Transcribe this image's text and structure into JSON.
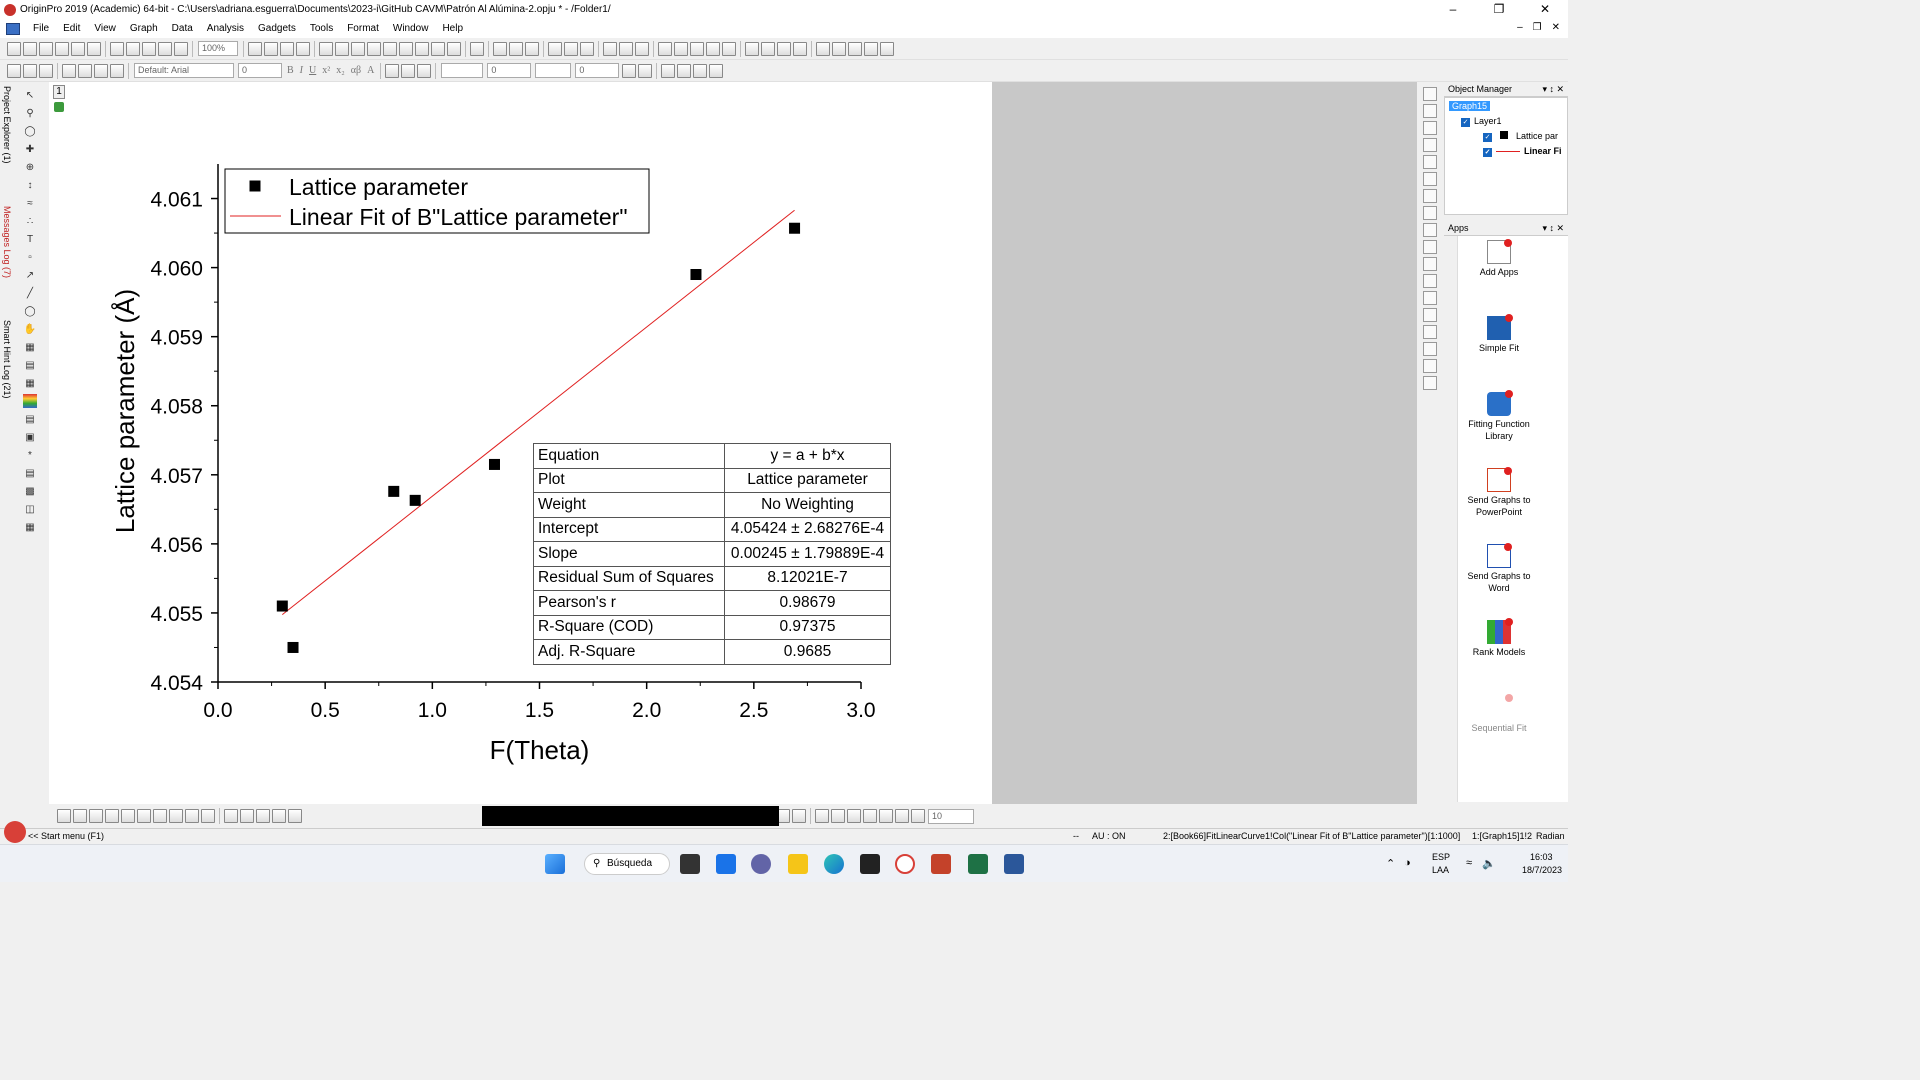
{
  "window": {
    "title": "OriginPro 2019 (Academic) 64-bit - C:\\Users\\adriana.esguerra\\Documents\\2023-i\\GitHub CAVM\\Patrón Al Alúmina-2.opju * - /Folder1/"
  },
  "menu": [
    "File",
    "Edit",
    "View",
    "Graph",
    "Data",
    "Analysis",
    "Gadgets",
    "Tools",
    "Format",
    "Window",
    "Help"
  ],
  "toolbar": {
    "zoom": "100%",
    "font": "Default: Arial",
    "font_size": "0",
    "line_width": "0",
    "size2": "0",
    "bottom_size": "10"
  },
  "left_tabs": {
    "project_explorer": "Project Explorer (1)",
    "messages_log": "Messages Log (7)",
    "smart_hint_log": "Smart Hint Log (21)"
  },
  "graph": {
    "layer_number": "1"
  },
  "chart_data": {
    "type": "scatter",
    "xlabel": "F(Theta)",
    "ylabel": "Lattice parameter (Å)",
    "xlim": [
      0.0,
      3.0
    ],
    "ylim": [
      4.054,
      4.0615
    ],
    "xticks": [
      "0.0",
      "0.5",
      "1.0",
      "1.5",
      "2.0",
      "2.5",
      "3.0"
    ],
    "yticks": [
      "4.054",
      "4.055",
      "4.056",
      "4.057",
      "4.058",
      "4.059",
      "4.060",
      "4.061"
    ],
    "series": [
      {
        "name": "Lattice parameter",
        "x": [
          0.3,
          0.35,
          0.82,
          0.92,
          1.29,
          2.23,
          2.69
        ],
        "y": [
          4.0551,
          4.0545,
          4.05676,
          4.05663,
          4.05715,
          4.0599,
          4.06057
        ]
      }
    ],
    "fit": {
      "name": "Linear Fit of B\"Lattice parameter\"",
      "intercept": 4.05424,
      "slope": 0.00245,
      "x_range": [
        0.3,
        2.69
      ],
      "color": "#e02020"
    },
    "legend": {
      "position": "top-left",
      "entries": [
        "Lattice parameter",
        "Linear Fit of B\"Lattice parameter\""
      ]
    }
  },
  "fit_table": [
    {
      "key": "Equation",
      "value": "y = a + b*x"
    },
    {
      "key": "Plot",
      "value": "Lattice parameter"
    },
    {
      "key": "Weight",
      "value": "No Weighting"
    },
    {
      "key": "Intercept",
      "value": "4.05424 ± 2.68276E-4"
    },
    {
      "key": "Slope",
      "value": "0.00245 ± 1.79889E-4"
    },
    {
      "key": "Residual Sum of Squares",
      "value": "8.12021E-7"
    },
    {
      "key": "Pearson's r",
      "value": "0.98679"
    },
    {
      "key": "R-Square (COD)",
      "value": "0.97375"
    },
    {
      "key": "Adj. R-Square",
      "value": "0.9685"
    }
  ],
  "object_manager": {
    "title": "Object Manager",
    "graph": "Graph15",
    "layer": "Layer1",
    "items": [
      "Lattice par",
      "Linear Fi"
    ]
  },
  "apps": {
    "title": "Apps",
    "items": [
      "Add Apps",
      "Simple Fit",
      "Fitting Function Library",
      "Send Graphs to PowerPoint",
      "Send Graphs to Word",
      "Rank Models",
      "Sequential Fit"
    ]
  },
  "statusbar": {
    "start": "<< Start menu (F1)",
    "dashes": "--",
    "au": "AU : ON",
    "info": "2:[Book66]FitLinearCurve1!Col(\"Linear Fit of B\"Lattice parameter\")[1:1000]",
    "layer": "1:[Graph15]1!2",
    "unit": "Radian"
  },
  "taskbar": {
    "search": "Búsqueda",
    "lang1": "ESP",
    "lang2": "LAA",
    "time": "16:03",
    "date": "18/7/2023"
  }
}
